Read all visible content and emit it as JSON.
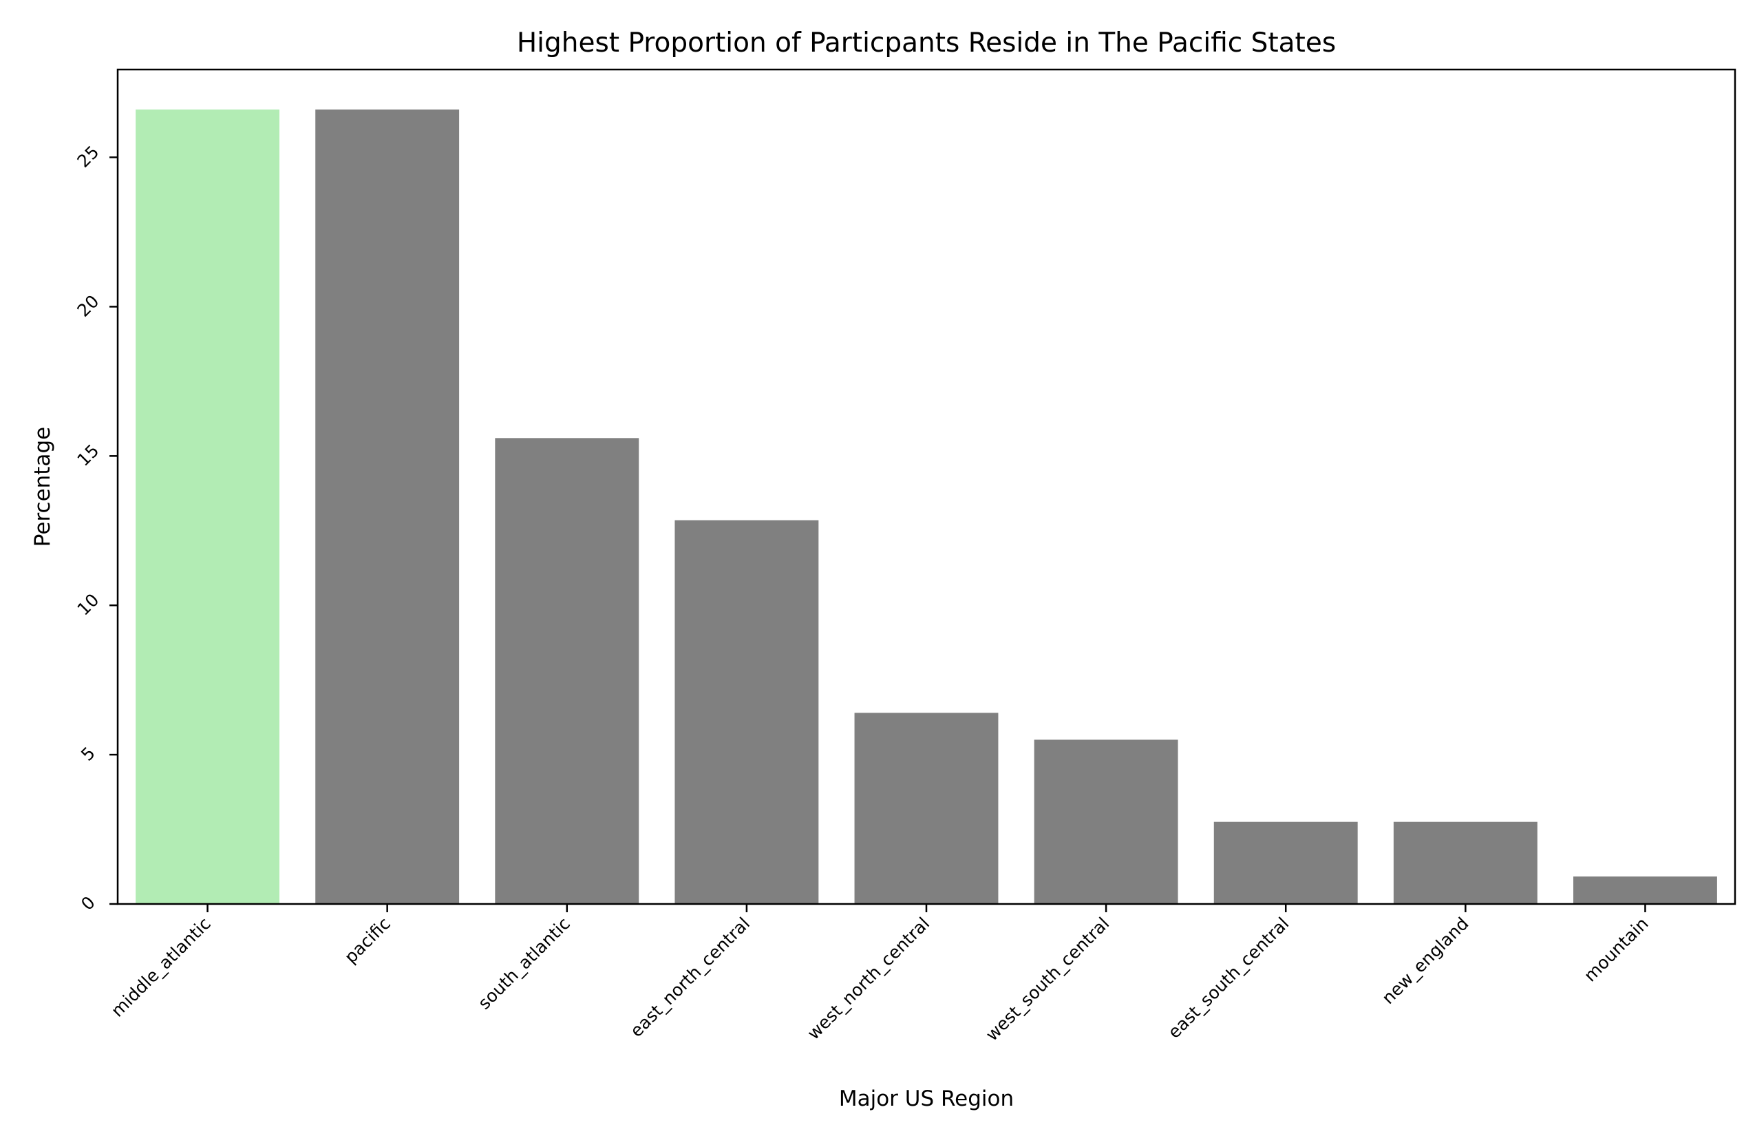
{
  "chart_data": {
    "type": "bar",
    "title": "Highest Proportion of Particpants Reside in The Pacific States",
    "xlabel": "Major US Region",
    "ylabel": "Percentage",
    "categories": [
      "middle_atlantic",
      "pacific",
      "south_atlantic",
      "east_north_central",
      "west_north_central",
      "west_south_central",
      "east_south_central",
      "new_england",
      "mountain"
    ],
    "values": [
      26.6,
      26.6,
      15.6,
      12.85,
      6.4,
      5.5,
      2.75,
      2.75,
      0.92
    ],
    "colors": [
      "#b2ecb4",
      "#808080",
      "#808080",
      "#808080",
      "#808080",
      "#808080",
      "#808080",
      "#808080",
      "#808080"
    ],
    "ylim": [
      0,
      27.94
    ],
    "yticks": [
      0,
      5,
      10,
      15,
      20,
      25
    ],
    "grid": false,
    "legend": false,
    "xtick_rotation_deg": 45,
    "ytick_rotation_deg": 45
  }
}
